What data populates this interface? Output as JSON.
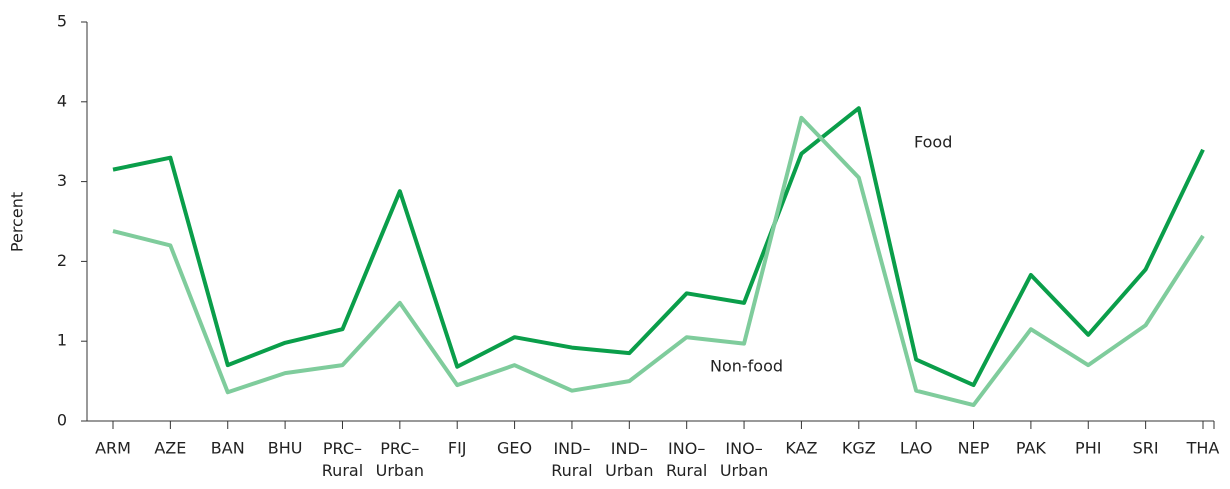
{
  "chart_data": {
    "type": "line",
    "y_label": "Percent",
    "categories": [
      "ARM",
      "AZE",
      "BAN",
      "BHU",
      "PRC–\nRural",
      "PRC–\nUrban",
      "FIJ",
      "GEO",
      "IND–\nRural",
      "IND–\nUrban",
      "INO–\nRural",
      "INO–\nUrban",
      "KAZ",
      "KGZ",
      "LAO",
      "NEP",
      "PAK",
      "PHI",
      "SRI",
      "THA"
    ],
    "series": [
      {
        "name": "Food",
        "color": "#0a9e4a",
        "values": [
          3.15,
          3.3,
          0.7,
          0.98,
          1.15,
          2.88,
          0.68,
          1.05,
          0.92,
          0.85,
          1.6,
          1.48,
          3.35,
          3.92,
          0.77,
          0.45,
          1.83,
          1.08,
          1.9,
          3.4
        ]
      },
      {
        "name": "Non-food",
        "color": "#7fcc9c",
        "values": [
          2.38,
          2.2,
          0.36,
          0.6,
          0.7,
          1.48,
          0.45,
          0.7,
          0.38,
          0.5,
          1.05,
          0.97,
          3.8,
          3.05,
          0.38,
          0.2,
          1.15,
          0.7,
          1.2,
          2.32
        ]
      }
    ],
    "ylim": [
      0,
      5
    ],
    "yticks": [
      0,
      1,
      2,
      3,
      4,
      5
    ],
    "grid": false
  }
}
